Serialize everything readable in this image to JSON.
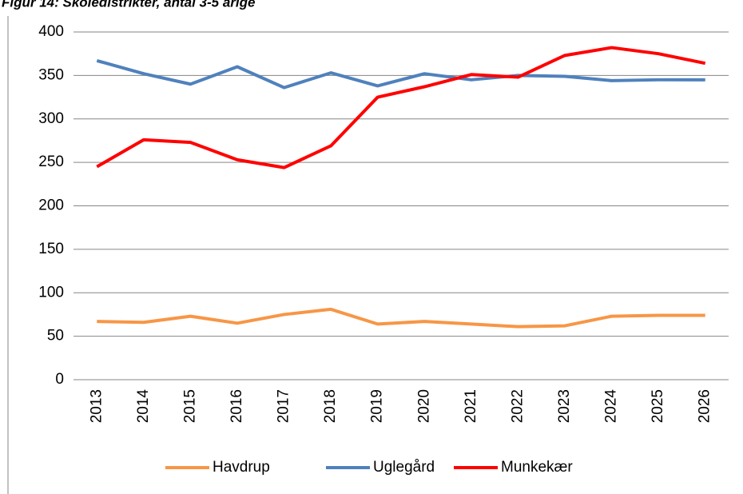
{
  "chart_data": {
    "type": "line",
    "title": "Figur 14: Skoledistrikter, antal 3-5 årige",
    "categories": [
      "2013",
      "2014",
      "2015",
      "2016",
      "2017",
      "2018",
      "2019",
      "2020",
      "2021",
      "2022",
      "2023",
      "2024",
      "2025",
      "2026"
    ],
    "series": [
      {
        "name": "Havdrup",
        "color": "#f79646",
        "values": [
          67,
          66,
          73,
          65,
          75,
          81,
          64,
          67,
          64,
          61,
          62,
          73,
          74,
          74
        ]
      },
      {
        "name": "Uglegård",
        "color": "#4f81bd",
        "values": [
          367,
          352,
          340,
          360,
          336,
          353,
          338,
          352,
          345,
          350,
          349,
          344,
          345,
          345
        ]
      },
      {
        "name": "Munkekær",
        "color": "#ff0000",
        "values": [
          245,
          276,
          273,
          253,
          244,
          269,
          325,
          337,
          351,
          348,
          373,
          382,
          375,
          364
        ]
      }
    ],
    "ylim": [
      0,
      400
    ],
    "yticks": [
      0,
      50,
      100,
      150,
      200,
      250,
      300,
      350,
      400
    ],
    "grid": true,
    "legend": "bottom"
  }
}
